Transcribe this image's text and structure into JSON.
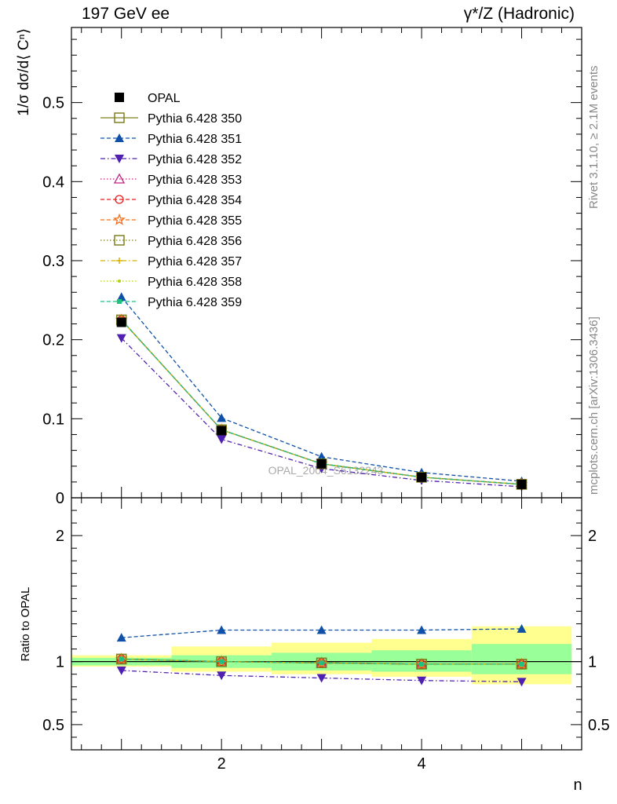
{
  "header": {
    "left": "197 GeV ee",
    "right": "γ*/Z (Hadronic)"
  },
  "side": {
    "rivet": "Rivet 3.1.10, ≥ 2.1M events",
    "mcplots": "mcplots.cern.ch [arXiv:1306.3436]"
  },
  "watermark": "OPAL_2004_S6132243",
  "chart_data": [
    {
      "type": "line",
      "panel": "main",
      "ylabel": "1/σ dσ/d⟨ Cⁿ⟩",
      "xlim": [
        0.5,
        5.6
      ],
      "ylim": [
        0,
        0.595
      ],
      "yticks": [
        0,
        0.1,
        0.2,
        0.3,
        0.4,
        0.5
      ],
      "yticklabels": [
        "0",
        "0.1",
        "0.2",
        "0.3",
        "0.4",
        "0.5"
      ],
      "x": [
        1,
        2,
        3,
        4,
        5
      ],
      "series": [
        {
          "name": "OPAL",
          "values": [
            0.222,
            0.085,
            0.043,
            0.026,
            0.017
          ],
          "color": "#000000",
          "marker": "square-filled",
          "dash": "none",
          "data": true
        },
        {
          "name": "Pythia 6.428 350",
          "values": [
            0.225,
            0.086,
            0.043,
            0.026,
            0.017
          ],
          "color": "#808020",
          "marker": "square-open",
          "dash": "solid"
        },
        {
          "name": "Pythia 6.428 351",
          "values": [
            0.254,
            0.101,
            0.052,
            0.032,
            0.021
          ],
          "color": "#1050a8",
          "marker": "triangle-up-filled",
          "dash": "dashed"
        },
        {
          "name": "Pythia 6.428 352",
          "values": [
            0.202,
            0.074,
            0.037,
            0.022,
            0.014
          ],
          "color": "#5020b0",
          "marker": "triangle-down-filled",
          "dash": "dashdot"
        },
        {
          "name": "Pythia 6.428 353",
          "values": [
            0.225,
            0.086,
            0.043,
            0.026,
            0.017
          ],
          "color": "#c02080",
          "marker": "triangle-up-open",
          "dash": "dotted"
        },
        {
          "name": "Pythia 6.428 354",
          "values": [
            0.225,
            0.086,
            0.043,
            0.026,
            0.017
          ],
          "color": "#e02020",
          "marker": "circle-open",
          "dash": "dashed"
        },
        {
          "name": "Pythia 6.428 355",
          "values": [
            0.225,
            0.086,
            0.043,
            0.026,
            0.017
          ],
          "color": "#f07020",
          "marker": "star-open",
          "dash": "dashed"
        },
        {
          "name": "Pythia 6.428 356",
          "values": [
            0.225,
            0.086,
            0.043,
            0.026,
            0.017
          ],
          "color": "#808020",
          "marker": "square-open",
          "dash": "dotted"
        },
        {
          "name": "Pythia 6.428 357",
          "values": [
            0.225,
            0.086,
            0.043,
            0.026,
            0.017
          ],
          "color": "#d8b000",
          "marker": "tick",
          "dash": "dashdot"
        },
        {
          "name": "Pythia 6.428 358",
          "values": [
            0.225,
            0.086,
            0.043,
            0.026,
            0.017
          ],
          "color": "#b0d010",
          "marker": "dot",
          "dash": "dotted"
        },
        {
          "name": "Pythia 6.428 359",
          "values": [
            0.225,
            0.086,
            0.043,
            0.026,
            0.017
          ],
          "color": "#20c080",
          "marker": "square-small",
          "dash": "dashed"
        }
      ]
    },
    {
      "type": "line",
      "panel": "ratio",
      "ylabel": "Ratio to OPAL",
      "xlabel": "n",
      "xlim": [
        0.5,
        5.6
      ],
      "ylim": [
        0.3,
        2.3
      ],
      "xticks": [
        2,
        4
      ],
      "xticklabels": [
        "2",
        "4"
      ],
      "yticks": [
        0.5,
        1,
        2
      ],
      "yticklabels": [
        "0.5",
        "1",
        "2"
      ],
      "x": [
        1,
        2,
        3,
        4,
        5
      ],
      "bands": {
        "green": [
          [
            0.97,
            1.03
          ],
          [
            0.95,
            1.05
          ],
          [
            0.93,
            1.07
          ],
          [
            0.92,
            1.09
          ],
          [
            0.9,
            1.14
          ]
        ],
        "yellow": [
          [
            0.96,
            1.05
          ],
          [
            0.92,
            1.12
          ],
          [
            0.9,
            1.15
          ],
          [
            0.88,
            1.18
          ],
          [
            0.82,
            1.28
          ]
        ]
      },
      "series": [
        {
          "name": "Pythia 6.428 350",
          "values": [
            1.02,
            1.0,
            0.99,
            0.98,
            0.98
          ]
        },
        {
          "name": "Pythia 6.428 351",
          "values": [
            1.19,
            1.25,
            1.25,
            1.25,
            1.26
          ]
        },
        {
          "name": "Pythia 6.428 352",
          "values": [
            0.93,
            0.89,
            0.87,
            0.85,
            0.84
          ]
        },
        {
          "name": "Pythia 6.428 353",
          "values": [
            1.02,
            1.0,
            0.99,
            0.98,
            0.98
          ]
        },
        {
          "name": "Pythia 6.428 354",
          "values": [
            1.02,
            1.0,
            0.99,
            0.98,
            0.98
          ]
        },
        {
          "name": "Pythia 6.428 355",
          "values": [
            1.02,
            1.0,
            0.99,
            0.98,
            0.98
          ]
        },
        {
          "name": "Pythia 6.428 356",
          "values": [
            1.02,
            1.0,
            0.99,
            0.98,
            0.98
          ]
        },
        {
          "name": "Pythia 6.428 357",
          "values": [
            1.02,
            1.0,
            0.99,
            0.98,
            0.98
          ]
        },
        {
          "name": "Pythia 6.428 358",
          "values": [
            1.02,
            1.0,
            0.99,
            0.98,
            0.98
          ]
        },
        {
          "name": "Pythia 6.428 359",
          "values": [
            1.02,
            1.0,
            0.99,
            0.98,
            0.98
          ]
        }
      ]
    }
  ]
}
